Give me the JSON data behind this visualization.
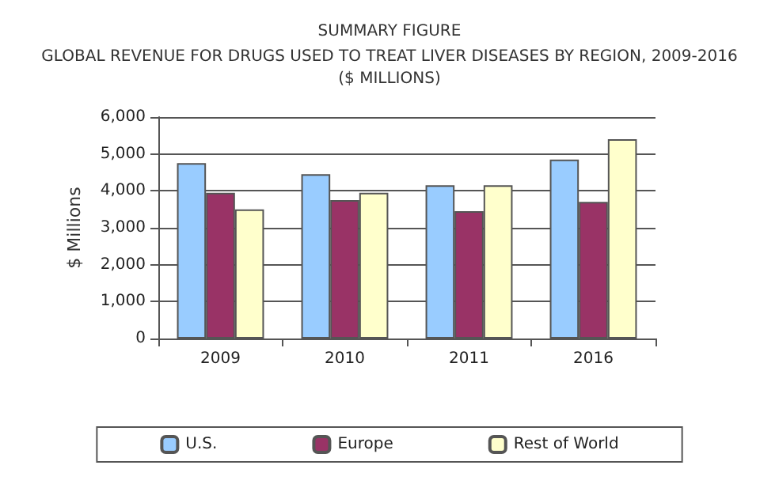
{
  "chart_data": {
    "type": "bar",
    "title": "SUMMARY FIGURE",
    "subtitle": "GLOBAL REVENUE FOR DRUGS USED TO TREAT LIVER DISEASES BY REGION, 2009-2016\n($ MILLIONS)",
    "ylabel": "$ Millions",
    "categories": [
      "2009",
      "2010",
      "2011",
      "2016"
    ],
    "series": [
      {
        "name": "U.S.",
        "color": "#99ccff",
        "values": [
          4750,
          4450,
          4150,
          4850
        ]
      },
      {
        "name": "Europe",
        "color": "#993366",
        "values": [
          3950,
          3750,
          3450,
          3700
        ]
      },
      {
        "name": "Rest of World",
        "color": "#ffffcc",
        "values": [
          3500,
          3950,
          4150,
          5400
        ]
      }
    ],
    "ylim": [
      0,
      6000
    ],
    "yticks": [
      0,
      {
        "value": 1000,
        "label": "1,000"
      },
      {
        "value": 2000,
        "label": "2,000"
      },
      {
        "value": 3000,
        "label": "3,000"
      },
      {
        "value": 4000,
        "label": "4,000"
      },
      {
        "value": 5000,
        "label": "5,000"
      },
      {
        "value": 6000,
        "label": "6,000"
      }
    ],
    "grid": "y",
    "legend": "bottom"
  }
}
